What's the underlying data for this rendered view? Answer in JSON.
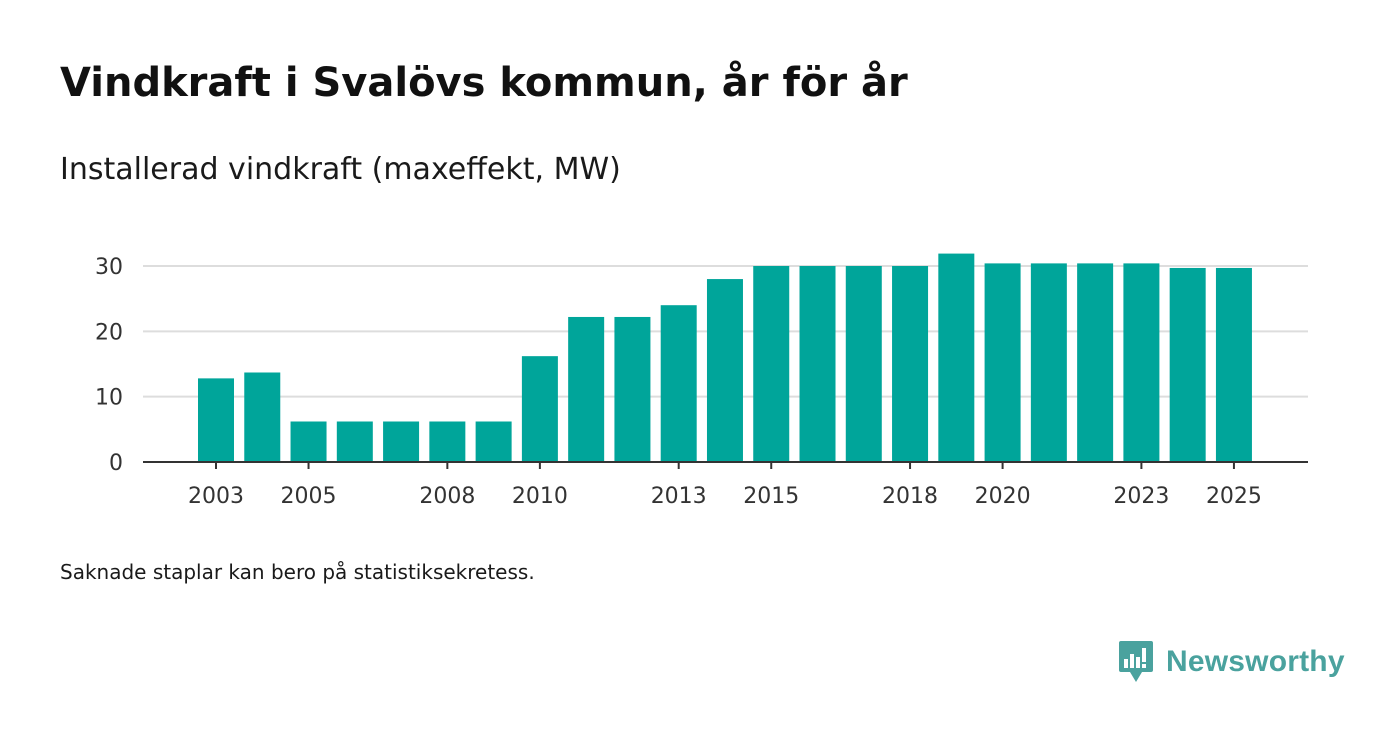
{
  "title": "Vindkraft i Svalövs kommun, år för år",
  "subtitle": "Installerad vindkraft (maxeffekt, MW)",
  "footnote": "Saknade staplar kan bero på statistiksekretess.",
  "brand": {
    "name": "Newsworthy",
    "icon": "newsworthy-logo-icon",
    "color": "#4aa29e"
  },
  "chart_data": {
    "type": "bar",
    "title": "Vindkraft i Svalövs kommun, år för år",
    "ylabel": "Installerad vindkraft (maxeffekt, MW)",
    "xlabel": "",
    "categories": [
      "2003",
      "2004",
      "2005",
      "2006",
      "2007",
      "2008",
      "2009",
      "2010",
      "2011",
      "2012",
      "2013",
      "2014",
      "2015",
      "2016",
      "2017",
      "2018",
      "2019",
      "2020",
      "2021",
      "2022",
      "2023",
      "2024",
      "2025"
    ],
    "values": [
      12.8,
      13.7,
      6.2,
      6.2,
      6.2,
      6.2,
      6.2,
      16.2,
      22.2,
      22.2,
      24.0,
      28.0,
      30.0,
      30.0,
      30.0,
      30.0,
      31.9,
      30.4,
      30.4,
      30.4,
      30.4,
      29.7,
      29.7
    ],
    "ylim": [
      0,
      30
    ],
    "yticks": [
      0,
      10,
      20,
      30
    ],
    "xtick_labels": [
      "2003",
      "2005",
      "2008",
      "2010",
      "2013",
      "2015",
      "2018",
      "2020",
      "2023",
      "2025"
    ],
    "bar_color": "#00a59a",
    "grid": true
  }
}
